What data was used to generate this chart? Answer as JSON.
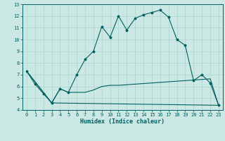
{
  "xlabel": "Humidex (Indice chaleur)",
  "background_color": "#cce8e4",
  "grid_color": "#aad4d0",
  "line_color": "#006060",
  "xlim": [
    -0.5,
    23.5
  ],
  "ylim": [
    4,
    13
  ],
  "xticks": [
    0,
    1,
    2,
    3,
    4,
    5,
    6,
    7,
    8,
    9,
    10,
    11,
    12,
    13,
    14,
    15,
    16,
    17,
    18,
    19,
    20,
    21,
    22,
    23
  ],
  "yticks": [
    4,
    5,
    6,
    7,
    8,
    9,
    10,
    11,
    12,
    13
  ],
  "curve1_x": [
    0,
    1,
    2,
    3,
    4,
    5,
    6,
    7,
    8,
    9,
    10,
    11,
    12,
    13,
    14,
    15,
    16,
    17,
    18,
    19,
    20,
    21,
    22,
    23
  ],
  "curve1_y": [
    7.3,
    6.2,
    5.4,
    4.6,
    5.8,
    5.5,
    7.0,
    8.3,
    9.0,
    11.1,
    10.2,
    12.0,
    10.8,
    11.8,
    12.1,
    12.3,
    12.5,
    11.9,
    10.0,
    9.5,
    6.5,
    7.0,
    6.3,
    4.4
  ],
  "curve2_x": [
    0,
    3,
    4,
    5,
    6,
    7,
    8,
    9,
    10,
    11,
    12,
    13,
    14,
    15,
    16,
    17,
    18,
    19,
    20,
    21,
    22,
    23
  ],
  "curve2_y": [
    7.3,
    4.6,
    5.8,
    5.5,
    5.5,
    5.5,
    5.7,
    6.0,
    6.1,
    6.1,
    6.15,
    6.2,
    6.25,
    6.3,
    6.35,
    6.4,
    6.45,
    6.5,
    6.55,
    6.6,
    6.65,
    4.4
  ],
  "curve3_x": [
    0,
    3,
    23
  ],
  "curve3_y": [
    7.3,
    4.6,
    4.4
  ],
  "xlabel_fontsize": 6.0,
  "tick_fontsize": 5.0
}
